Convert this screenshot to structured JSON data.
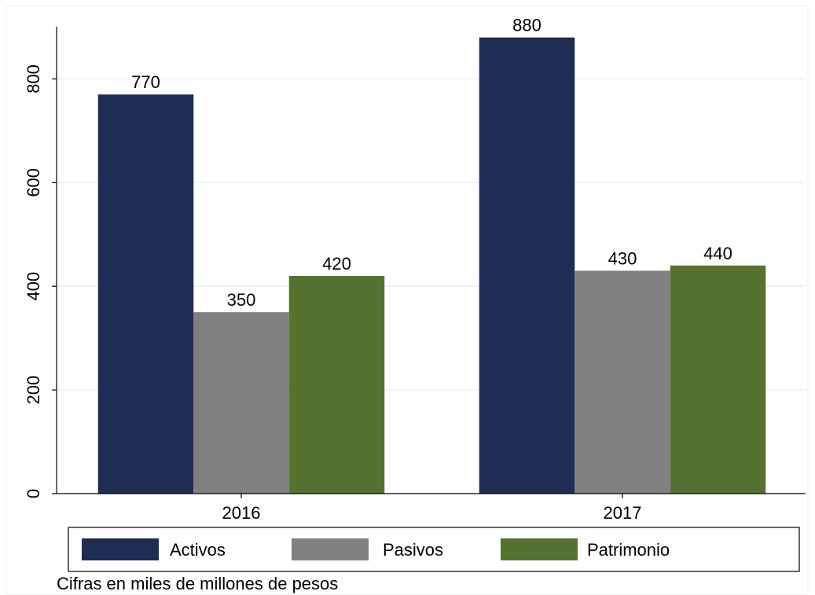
{
  "chart_data": {
    "type": "bar",
    "categories": [
      "2016",
      "2017"
    ],
    "series": [
      {
        "name": "Activos",
        "values": [
          770,
          880
        ],
        "color": "#1f2c54"
      },
      {
        "name": "Pasivos",
        "values": [
          350,
          430
        ],
        "color": "#808080"
      },
      {
        "name": "Patrimonio",
        "values": [
          420,
          440
        ],
        "color": "#557230"
      }
    ],
    "ylim": [
      0,
      925
    ],
    "yticks": [
      0,
      200,
      400,
      600,
      800
    ],
    "grid": true,
    "legend": "bottom",
    "note": "Cifras en miles de millones de pesos"
  }
}
